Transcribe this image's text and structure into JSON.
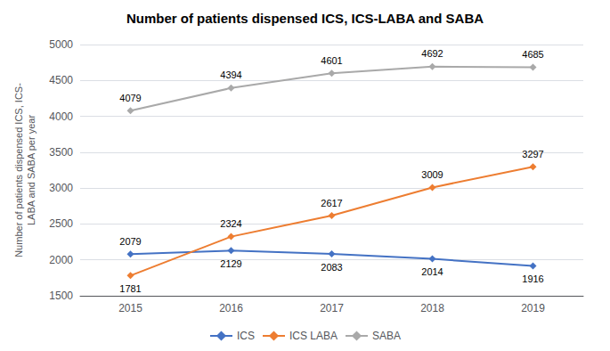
{
  "chart_data": {
    "type": "line",
    "title": "Number of patients dispensed ICS, ICS-LABA and SABA",
    "ylabel": "Number of patients dispensed ICS, ICS-\nLABA and SABA per year",
    "categories": [
      "2015",
      "2016",
      "2017",
      "2018",
      "2019"
    ],
    "series": [
      {
        "name": "ICS",
        "color": "#4472C4",
        "values": [
          2079,
          2129,
          2083,
          2014,
          1916
        ]
      },
      {
        "name": "ICS LABA",
        "color": "#ED7D31",
        "values": [
          1781,
          2324,
          2617,
          3009,
          3297
        ]
      },
      {
        "name": "SABA",
        "color": "#A9A9A9",
        "values": [
          4079,
          4394,
          4601,
          4692,
          4685
        ]
      }
    ],
    "ylim": [
      1500,
      5000
    ],
    "yticks": [
      1500,
      2000,
      2500,
      3000,
      3500,
      4000,
      4500,
      5000
    ],
    "grid": true,
    "legend": "bottom",
    "marker": "diamond",
    "data_labels": true
  }
}
